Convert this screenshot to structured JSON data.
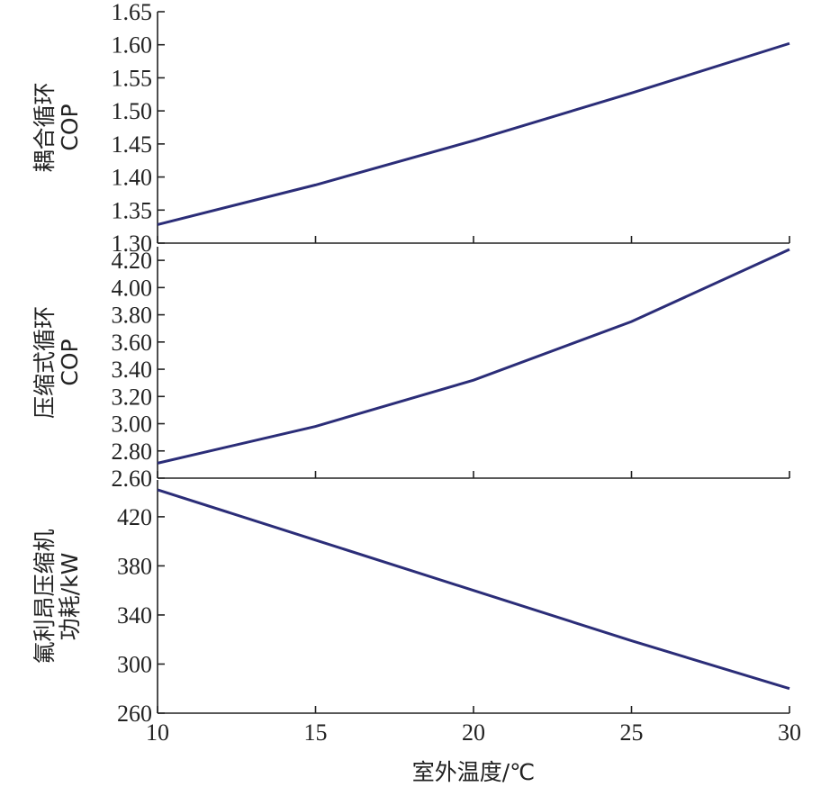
{
  "chart_data": [
    {
      "type": "line",
      "ylabel": [
        "耦合循环",
        "COP"
      ],
      "xlabel": "",
      "x": [
        10,
        15,
        20,
        25,
        30
      ],
      "series": [
        {
          "values": [
            1.328,
            1.388,
            1.455,
            1.527,
            1.602
          ]
        }
      ],
      "yticks": [
        "1.30",
        "1.35",
        "1.40",
        "1.45",
        "1.50",
        "1.55",
        "1.60",
        "1.65"
      ],
      "ylim": [
        1.3,
        1.65
      ],
      "xlim": [
        10,
        30
      ],
      "grid": false
    },
    {
      "type": "line",
      "ylabel": [
        "压缩式循环",
        "COP"
      ],
      "xlabel": "",
      "x": [
        10,
        15,
        20,
        25,
        30
      ],
      "series": [
        {
          "values": [
            2.71,
            2.98,
            3.32,
            3.75,
            4.28
          ]
        }
      ],
      "yticks": [
        "2.60",
        "2.80",
        "3.00",
        "3.20",
        "3.40",
        "3.60",
        "3.80",
        "4.00",
        "4.20"
      ],
      "ylim": [
        2.6,
        4.3
      ],
      "xlim": [
        10,
        30
      ],
      "grid": false
    },
    {
      "type": "line",
      "ylabel": [
        "氟利昂压缩机",
        "功耗/kW"
      ],
      "xlabel": "室外温度/℃",
      "x": [
        10,
        15,
        20,
        25,
        30
      ],
      "series": [
        {
          "values": [
            442,
            401,
            360,
            319,
            280
          ]
        }
      ],
      "yticks": [
        "260",
        "300",
        "340",
        "380",
        "420"
      ],
      "xticks": [
        "10",
        "15",
        "20",
        "25",
        "30"
      ],
      "ylim": [
        260,
        450
      ],
      "xlim": [
        10,
        30
      ],
      "grid": false
    }
  ]
}
